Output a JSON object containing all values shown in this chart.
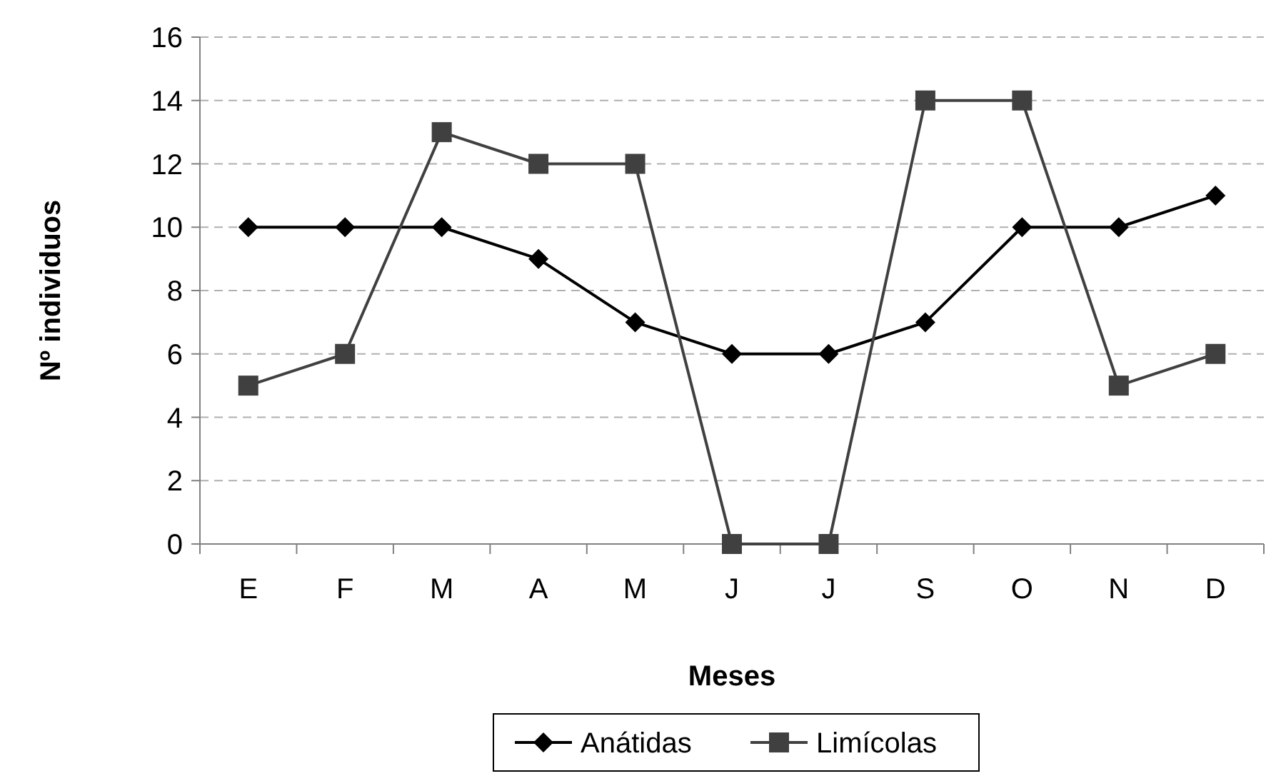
{
  "chart_data": {
    "type": "line",
    "xlabel": "Meses",
    "ylabel": "Nº individuos",
    "categories": [
      "E",
      "F",
      "M",
      "A",
      "M",
      "J",
      "J",
      "S",
      "O",
      "N",
      "D"
    ],
    "series": [
      {
        "name": "Anátidas",
        "color": "#000000",
        "marker": "diamond",
        "values": [
          10,
          10,
          10,
          9,
          7,
          6,
          6,
          7,
          10,
          10,
          11
        ]
      },
      {
        "name": "Limícolas",
        "color": "#404040",
        "marker": "square",
        "values": [
          5,
          6,
          13,
          12,
          12,
          0,
          0,
          14,
          14,
          5,
          6
        ]
      }
    ],
    "ylim": [
      0,
      16
    ],
    "yticks": [
      0,
      2,
      4,
      6,
      8,
      10,
      12,
      14,
      16
    ],
    "grid": "y",
    "legend": "bottom",
    "line_style": "solid"
  }
}
